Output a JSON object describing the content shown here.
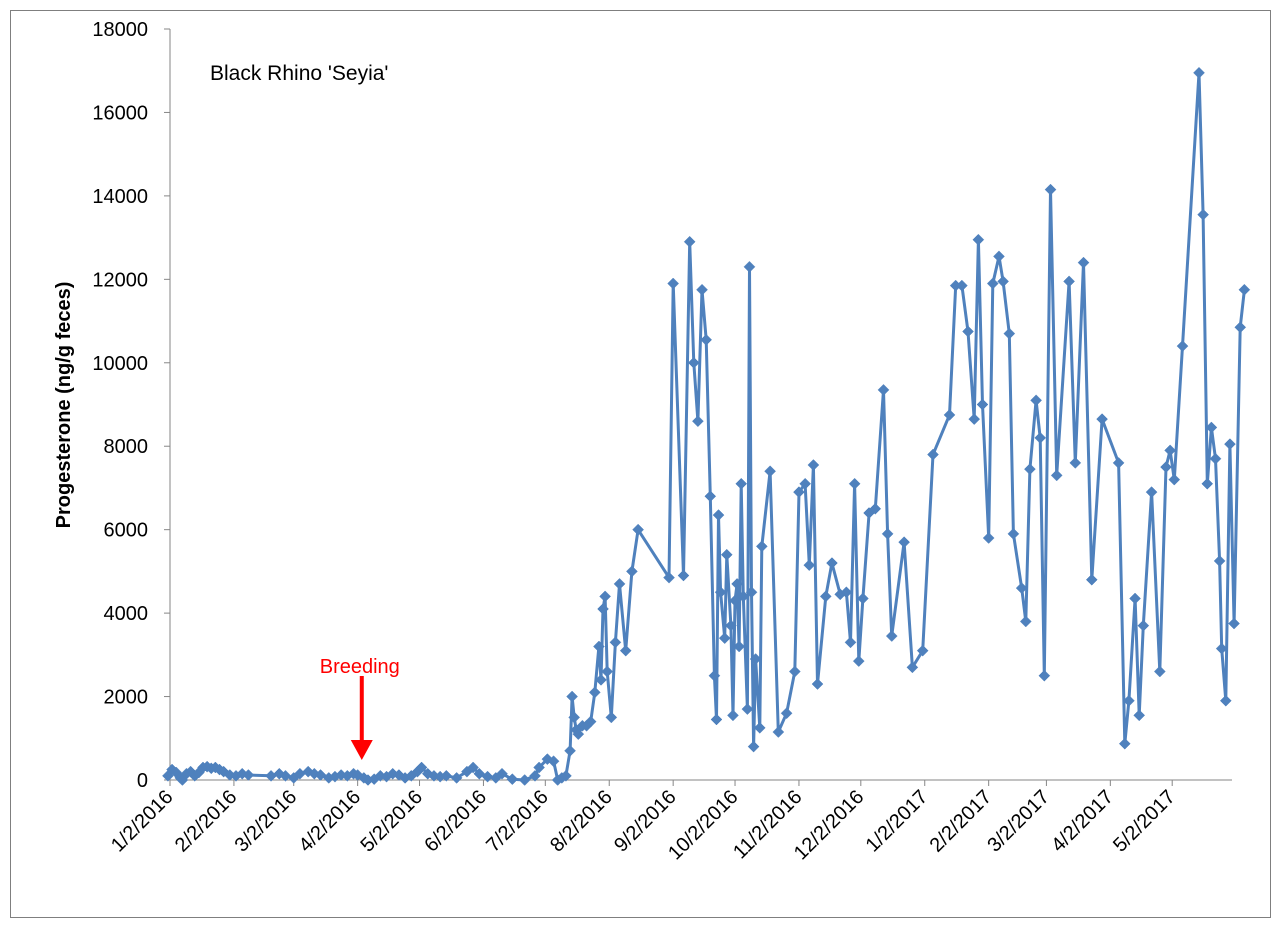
{
  "chart_data": {
    "type": "line",
    "title": "Black Rhino 'Seyia'",
    "xlabel": "",
    "ylabel": "Progesterone (ng/g feces)",
    "ylim": [
      0,
      18000
    ],
    "yticks": [
      "0",
      "2000",
      "4000",
      "6000",
      "8000",
      "10000",
      "12000",
      "14000",
      "16000",
      "18000"
    ],
    "xlim": [
      "2016-01-02",
      "2017-05-31"
    ],
    "xticks": [
      {
        "label": "1/2/2016",
        "date": "2016-01-02"
      },
      {
        "label": "2/2/2016",
        "date": "2016-02-02"
      },
      {
        "label": "3/2/2016",
        "date": "2016-03-02"
      },
      {
        "label": "4/2/2016",
        "date": "2016-04-02"
      },
      {
        "label": "5/2/2016",
        "date": "2016-05-02"
      },
      {
        "label": "6/2/2016",
        "date": "2016-06-02"
      },
      {
        "label": "7/2/2016",
        "date": "2016-07-02"
      },
      {
        "label": "8/2/2016",
        "date": "2016-08-02"
      },
      {
        "label": "9/2/2016",
        "date": "2016-09-02"
      },
      {
        "label": "10/2/2016",
        "date": "2016-10-02"
      },
      {
        "label": "11/2/2016",
        "date": "2016-11-02"
      },
      {
        "label": "12/2/2016",
        "date": "2016-12-02"
      },
      {
        "label": "1/2/2017",
        "date": "2017-01-02"
      },
      {
        "label": "2/2/2017",
        "date": "2017-02-02"
      },
      {
        "label": "3/2/2017",
        "date": "2017-03-02"
      },
      {
        "label": "4/2/2017",
        "date": "2017-04-02"
      },
      {
        "label": "5/2/2017",
        "date": "2017-05-02"
      }
    ],
    "grid": false,
    "legend": "none",
    "series": [
      {
        "color": "#4f81bd",
        "marker": "diamond",
        "points": [
          [
            "2016-01-01",
            100
          ],
          [
            "2016-01-03",
            250
          ],
          [
            "2016-01-05",
            180
          ],
          [
            "2016-01-07",
            50
          ],
          [
            "2016-01-08",
            0
          ],
          [
            "2016-01-10",
            150
          ],
          [
            "2016-01-12",
            200
          ],
          [
            "2016-01-14",
            100
          ],
          [
            "2016-01-16",
            180
          ],
          [
            "2016-01-18",
            300
          ],
          [
            "2016-01-20",
            320
          ],
          [
            "2016-01-22",
            280
          ],
          [
            "2016-01-24",
            300
          ],
          [
            "2016-01-26",
            250
          ],
          [
            "2016-01-28",
            200
          ],
          [
            "2016-01-31",
            120
          ],
          [
            "2016-02-03",
            100
          ],
          [
            "2016-02-06",
            150
          ],
          [
            "2016-02-09",
            120
          ],
          [
            "2016-02-20",
            100
          ],
          [
            "2016-02-24",
            150
          ],
          [
            "2016-02-27",
            100
          ],
          [
            "2016-03-02",
            50
          ],
          [
            "2016-03-05",
            150
          ],
          [
            "2016-03-09",
            200
          ],
          [
            "2016-03-12",
            150
          ],
          [
            "2016-03-15",
            120
          ],
          [
            "2016-03-19",
            50
          ],
          [
            "2016-03-22",
            80
          ],
          [
            "2016-03-25",
            120
          ],
          [
            "2016-03-28",
            100
          ],
          [
            "2016-03-31",
            150
          ],
          [
            "2016-04-02",
            120
          ],
          [
            "2016-04-05",
            50
          ],
          [
            "2016-04-07",
            0
          ],
          [
            "2016-04-10",
            20
          ],
          [
            "2016-04-13",
            100
          ],
          [
            "2016-04-16",
            80
          ],
          [
            "2016-04-19",
            150
          ],
          [
            "2016-04-22",
            120
          ],
          [
            "2016-04-25",
            50
          ],
          [
            "2016-04-28",
            100
          ],
          [
            "2016-05-01",
            200
          ],
          [
            "2016-05-03",
            300
          ],
          [
            "2016-05-06",
            150
          ],
          [
            "2016-05-09",
            100
          ],
          [
            "2016-05-12",
            80
          ],
          [
            "2016-05-15",
            100
          ],
          [
            "2016-05-20",
            50
          ],
          [
            "2016-05-25",
            200
          ],
          [
            "2016-05-28",
            300
          ],
          [
            "2016-05-31",
            150
          ],
          [
            "2016-06-04",
            80
          ],
          [
            "2016-06-08",
            50
          ],
          [
            "2016-06-11",
            150
          ],
          [
            "2016-06-16",
            20
          ],
          [
            "2016-06-22",
            0
          ],
          [
            "2016-06-27",
            100
          ],
          [
            "2016-06-29",
            300
          ],
          [
            "2016-07-03",
            500
          ],
          [
            "2016-07-06",
            450
          ],
          [
            "2016-07-08",
            0
          ],
          [
            "2016-07-10",
            50
          ],
          [
            "2016-07-12",
            100
          ],
          [
            "2016-07-14",
            700
          ],
          [
            "2016-07-15",
            2000
          ],
          [
            "2016-07-16",
            1500
          ],
          [
            "2016-07-17",
            1200
          ],
          [
            "2016-07-18",
            1100
          ],
          [
            "2016-07-20",
            1300
          ],
          [
            "2016-07-22",
            1300
          ],
          [
            "2016-07-24",
            1400
          ],
          [
            "2016-07-26",
            2100
          ],
          [
            "2016-07-28",
            3200
          ],
          [
            "2016-07-29",
            2400
          ],
          [
            "2016-07-30",
            4100
          ],
          [
            "2016-07-31",
            4400
          ],
          [
            "2016-08-01",
            2600
          ],
          [
            "2016-08-03",
            1500
          ],
          [
            "2016-08-05",
            3300
          ],
          [
            "2016-08-07",
            4700
          ],
          [
            "2016-08-10",
            3100
          ],
          [
            "2016-08-13",
            5000
          ],
          [
            "2016-08-16",
            6000
          ],
          [
            "2016-08-31",
            4850
          ],
          [
            "2016-09-02",
            11900
          ],
          [
            "2016-09-07",
            4900
          ],
          [
            "2016-09-10",
            12900
          ],
          [
            "2016-09-12",
            10000
          ],
          [
            "2016-09-14",
            8600
          ],
          [
            "2016-09-16",
            11750
          ],
          [
            "2016-09-18",
            10550
          ],
          [
            "2016-09-20",
            6800
          ],
          [
            "2016-09-22",
            2500
          ],
          [
            "2016-09-23",
            1450
          ],
          [
            "2016-09-24",
            6350
          ],
          [
            "2016-09-25",
            4500
          ],
          [
            "2016-09-27",
            3400
          ],
          [
            "2016-09-28",
            5400
          ],
          [
            "2016-09-30",
            3700
          ],
          [
            "2016-10-01",
            1550
          ],
          [
            "2016-10-02",
            4300
          ],
          [
            "2016-10-03",
            4700
          ],
          [
            "2016-10-04",
            3200
          ],
          [
            "2016-10-05",
            7100
          ],
          [
            "2016-10-06",
            4400
          ],
          [
            "2016-10-08",
            1700
          ],
          [
            "2016-10-09",
            12300
          ],
          [
            "2016-10-10",
            4500
          ],
          [
            "2016-10-11",
            800
          ],
          [
            "2016-10-12",
            2900
          ],
          [
            "2016-10-14",
            1250
          ],
          [
            "2016-10-15",
            5600
          ],
          [
            "2016-10-19",
            7400
          ],
          [
            "2016-10-23",
            1150
          ],
          [
            "2016-10-27",
            1600
          ],
          [
            "2016-10-31",
            2600
          ],
          [
            "2016-11-02",
            6900
          ],
          [
            "2016-11-05",
            7100
          ],
          [
            "2016-11-07",
            5150
          ],
          [
            "2016-11-09",
            7550
          ],
          [
            "2016-11-11",
            2300
          ],
          [
            "2016-11-15",
            4400
          ],
          [
            "2016-11-18",
            5200
          ],
          [
            "2016-11-22",
            4450
          ],
          [
            "2016-11-25",
            4500
          ],
          [
            "2016-11-27",
            3300
          ],
          [
            "2016-11-29",
            7100
          ],
          [
            "2016-12-01",
            2850
          ],
          [
            "2016-12-03",
            4350
          ],
          [
            "2016-12-06",
            6400
          ],
          [
            "2016-12-09",
            6500
          ],
          [
            "2016-12-13",
            9350
          ],
          [
            "2016-12-15",
            5900
          ],
          [
            "2016-12-17",
            3450
          ],
          [
            "2016-12-23",
            5700
          ],
          [
            "2016-12-27",
            2700
          ],
          [
            "2017-01-01",
            3100
          ],
          [
            "2017-01-06",
            7800
          ],
          [
            "2017-01-14",
            8750
          ],
          [
            "2017-01-17",
            11850
          ],
          [
            "2017-01-20",
            11850
          ],
          [
            "2017-01-23",
            10750
          ],
          [
            "2017-01-26",
            8650
          ],
          [
            "2017-01-28",
            12950
          ],
          [
            "2017-01-30",
            9000
          ],
          [
            "2017-02-02",
            5800
          ],
          [
            "2017-02-04",
            11900
          ],
          [
            "2017-02-07",
            12550
          ],
          [
            "2017-02-09",
            11950
          ],
          [
            "2017-02-12",
            10700
          ],
          [
            "2017-02-14",
            5900
          ],
          [
            "2017-02-18",
            4600
          ],
          [
            "2017-02-20",
            3800
          ],
          [
            "2017-02-22",
            7450
          ],
          [
            "2017-02-25",
            9100
          ],
          [
            "2017-02-27",
            8200
          ],
          [
            "2017-03-01",
            2500
          ],
          [
            "2017-03-04",
            14150
          ],
          [
            "2017-03-07",
            7300
          ],
          [
            "2017-03-13",
            11950
          ],
          [
            "2017-03-16",
            7600
          ],
          [
            "2017-03-20",
            12400
          ],
          [
            "2017-03-24",
            4800
          ],
          [
            "2017-03-29",
            8650
          ],
          [
            "2017-04-06",
            7600
          ],
          [
            "2017-04-09",
            870
          ],
          [
            "2017-04-11",
            1900
          ],
          [
            "2017-04-14",
            4350
          ],
          [
            "2017-04-16",
            1550
          ],
          [
            "2017-04-18",
            3700
          ],
          [
            "2017-04-22",
            6900
          ],
          [
            "2017-04-26",
            2600
          ],
          [
            "2017-04-29",
            7500
          ],
          [
            "2017-05-01",
            7900
          ],
          [
            "2017-05-03",
            7200
          ],
          [
            "2017-05-07",
            10400
          ],
          [
            "2017-05-15",
            16950
          ],
          [
            "2017-05-17",
            13550
          ],
          [
            "2017-05-19",
            7100
          ],
          [
            "2017-05-21",
            8450
          ],
          [
            "2017-05-23",
            7700
          ],
          [
            "2017-05-25",
            5250
          ],
          [
            "2017-05-26",
            3150
          ],
          [
            "2017-05-28",
            1900
          ],
          [
            "2017-05-30",
            8050
          ],
          [
            "2017-06-01",
            3750
          ],
          [
            "2017-06-04",
            10850
          ],
          [
            "2017-06-06",
            11750
          ]
        ]
      }
    ],
    "annotations": [
      {
        "text": "Breeding",
        "date": "2016-04-04",
        "color": "#ff0000",
        "type": "arrow-down"
      }
    ]
  }
}
